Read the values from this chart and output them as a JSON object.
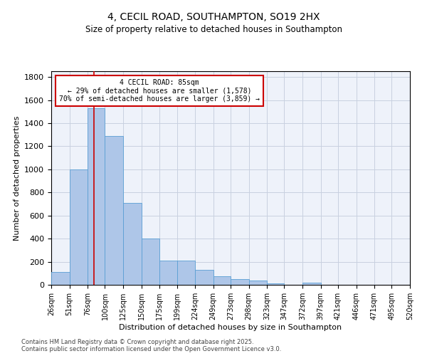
{
  "title1": "4, CECIL ROAD, SOUTHAMPTON, SO19 2HX",
  "title2": "Size of property relative to detached houses in Southampton",
  "xlabel": "Distribution of detached houses by size in Southampton",
  "ylabel": "Number of detached properties",
  "bin_labels": [
    "26sqm",
    "51sqm",
    "76sqm",
    "100sqm",
    "125sqm",
    "150sqm",
    "175sqm",
    "199sqm",
    "224sqm",
    "249sqm",
    "273sqm",
    "298sqm",
    "323sqm",
    "347sqm",
    "372sqm",
    "397sqm",
    "421sqm",
    "446sqm",
    "471sqm",
    "495sqm",
    "520sqm"
  ],
  "bin_edges": [
    26,
    51,
    76,
    100,
    125,
    150,
    175,
    199,
    224,
    249,
    273,
    298,
    323,
    347,
    372,
    397,
    421,
    446,
    471,
    495,
    520
  ],
  "bar_heights": [
    110,
    1000,
    1530,
    1290,
    710,
    400,
    210,
    210,
    130,
    75,
    50,
    35,
    15,
    0,
    20,
    0,
    0,
    0,
    0,
    0
  ],
  "bar_color": "#aec6e8",
  "bar_edge_color": "#5a9fd4",
  "bar_edge_width": 0.6,
  "red_line_x": 85,
  "red_line_color": "#cc0000",
  "annotation_line1": "4 CECIL ROAD: 85sqm",
  "annotation_line2": "← 29% of detached houses are smaller (1,578)",
  "annotation_line3": "70% of semi-detached houses are larger (3,859) →",
  "annotation_box_color": "#ffffff",
  "annotation_box_edge_color": "#cc0000",
  "ylim": [
    0,
    1850
  ],
  "yticks": [
    0,
    200,
    400,
    600,
    800,
    1000,
    1200,
    1400,
    1600,
    1800
  ],
  "grid_color": "#c8d0e0",
  "background_color": "#eef2fa",
  "footer1": "Contains HM Land Registry data © Crown copyright and database right 2025.",
  "footer2": "Contains public sector information licensed under the Open Government Licence v3.0."
}
